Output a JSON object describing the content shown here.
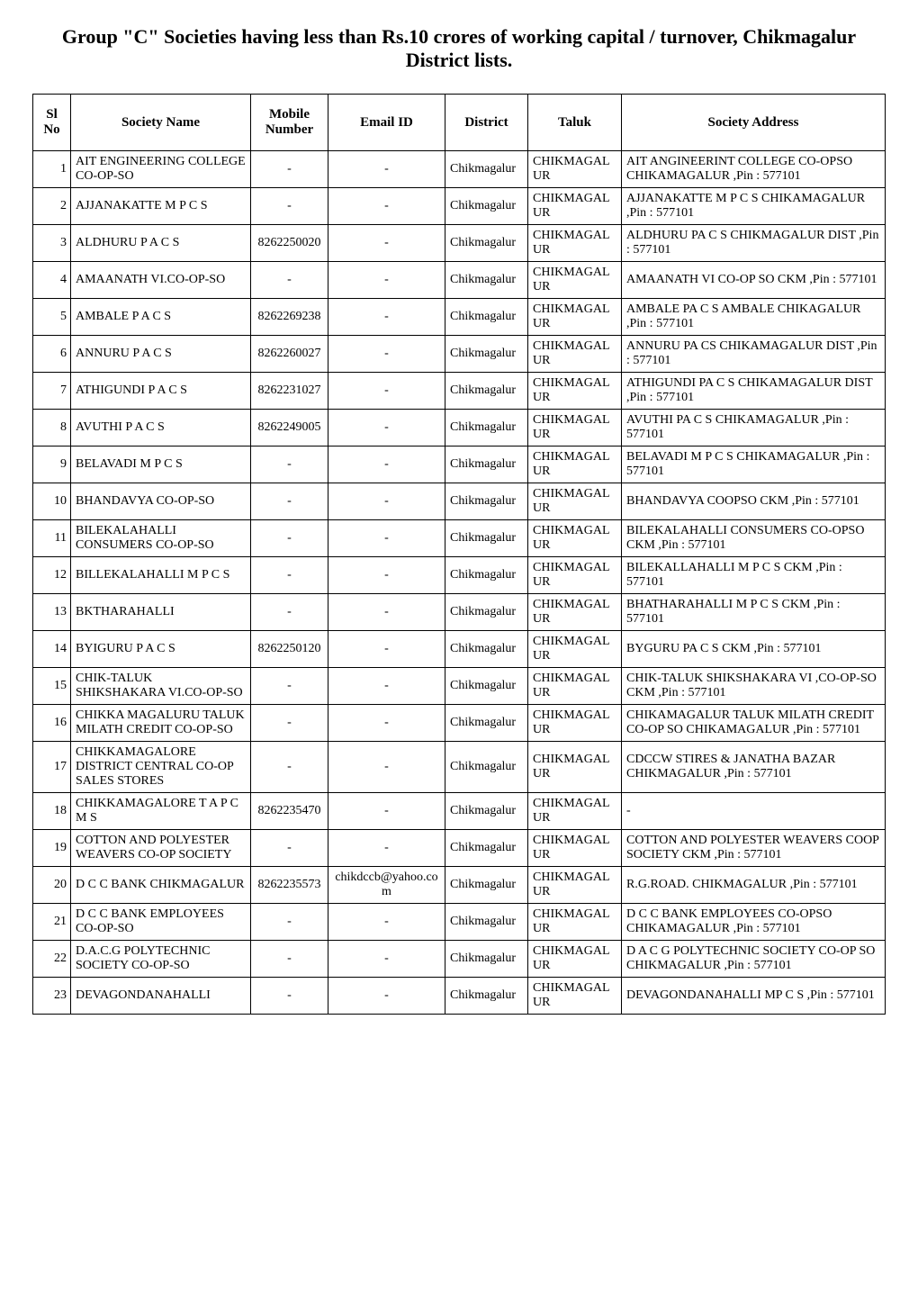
{
  "title": "Group \"C\" Societies having less than Rs.10 crores of working capital / turnover, Chikmagalur District lists.",
  "columns": {
    "slno": "Sl No",
    "society_name": "Society Name",
    "mobile": "Mobile Number",
    "email": "Email ID",
    "district": "District",
    "taluk": "Taluk",
    "address": "Society Address"
  },
  "rows": [
    {
      "slno": "1",
      "name": "AIT ENGINEERING COLLEGE  CO-OP-SO",
      "mobile": "-",
      "email": "-",
      "district": "Chikmagalur",
      "taluk": "CHIKMAGALUR",
      "address": "AIT ANGINEERINT COLLEGE CO-OPSO  CHIKAMAGALUR ,Pin : 577101"
    },
    {
      "slno": "2",
      "name": "AJJANAKATTE  M P C S",
      "mobile": "-",
      "email": "-",
      "district": "Chikmagalur",
      "taluk": "CHIKMAGALUR",
      "address": "AJJANAKATTE M P C S  CHIKAMAGALUR ,Pin : 577101"
    },
    {
      "slno": "3",
      "name": "ALDHURU  P A C S",
      "mobile": "8262250020",
      "email": "-",
      "district": "Chikmagalur",
      "taluk": "CHIKMAGALUR",
      "address": "ALDHURU PA C S  CHIKMAGALUR DIST ,Pin : 577101"
    },
    {
      "slno": "4",
      "name": "AMAANATH VI.CO-OP-SO",
      "mobile": "-",
      "email": "-",
      "district": "Chikmagalur",
      "taluk": "CHIKMAGALUR",
      "address": "AMAANATH VI CO-OP SO  CKM ,Pin : 577101"
    },
    {
      "slno": "5",
      "name": "AMBALE  P A C S",
      "mobile": "8262269238",
      "email": "-",
      "district": "Chikmagalur",
      "taluk": "CHIKMAGALUR",
      "address": "AMBALE PA C S  AMBALE  CHIKAGALUR ,Pin : 577101"
    },
    {
      "slno": "6",
      "name": "ANNURU  P A C S",
      "mobile": "8262260027",
      "email": "-",
      "district": "Chikmagalur",
      "taluk": "CHIKMAGALUR",
      "address": "ANNURU PA CS  CHIKAMAGALUR DIST ,Pin : 577101"
    },
    {
      "slno": "7",
      "name": "ATHIGUNDI  P A C S",
      "mobile": "8262231027",
      "email": "-",
      "district": "Chikmagalur",
      "taluk": "CHIKMAGALUR",
      "address": "ATHIGUNDI PA C S  CHIKAMAGALUR DIST ,Pin : 577101"
    },
    {
      "slno": "8",
      "name": "AVUTHI  P A C S",
      "mobile": "8262249005",
      "email": "-",
      "district": "Chikmagalur",
      "taluk": "CHIKMAGALUR",
      "address": "AVUTHI PA C S  CHIKAMAGALUR ,Pin : 577101"
    },
    {
      "slno": "9",
      "name": "BELAVADI  M P C S",
      "mobile": "-",
      "email": "-",
      "district": "Chikmagalur",
      "taluk": "CHIKMAGALUR",
      "address": "BELAVADI M P C S  CHIKAMAGALUR ,Pin : 577101"
    },
    {
      "slno": "10",
      "name": "BHANDAVYA CO-OP-SO",
      "mobile": "-",
      "email": "-",
      "district": "Chikmagalur",
      "taluk": "CHIKMAGALUR",
      "address": "BHANDAVYA COOPSO  CKM ,Pin : 577101"
    },
    {
      "slno": "11",
      "name": "BILEKALAHALLI  CONSUMERS CO-OP-SO",
      "mobile": "-",
      "email": "-",
      "district": "Chikmagalur",
      "taluk": "CHIKMAGALUR",
      "address": "BILEKALAHALLI CONSUMERS CO-OPSO  CKM ,Pin : 577101"
    },
    {
      "slno": "12",
      "name": "BILLEKALAHALLI  M P C S",
      "mobile": "-",
      "email": "-",
      "district": "Chikmagalur",
      "taluk": "CHIKMAGALUR",
      "address": "BILEKALLAHALLI M P C S  CKM ,Pin : 577101"
    },
    {
      "slno": "13",
      "name": "BKTHARAHALLI",
      "mobile": "-",
      "email": "-",
      "district": "Chikmagalur",
      "taluk": "CHIKMAGALUR",
      "address": "BHATHARAHALLI M P C S  CKM ,Pin : 577101"
    },
    {
      "slno": "14",
      "name": "BYIGURU  P A C S",
      "mobile": "8262250120",
      "email": "-",
      "district": "Chikmagalur",
      "taluk": "CHIKMAGALUR",
      "address": "BYGURU PA C S  CKM ,Pin : 577101"
    },
    {
      "slno": "15",
      "name": "CHIK-TALUK SHIKSHAKARA VI.CO-OP-SO",
      "mobile": "-",
      "email": "-",
      "district": "Chikmagalur",
      "taluk": "CHIKMAGALUR",
      "address": "CHIK-TALUK SHIKSHAKARA VI ,CO-OP-SO  CKM ,Pin : 577101"
    },
    {
      "slno": "16",
      "name": "CHIKKA MAGALURU TALUK MILATH CREDIT CO-OP-SO",
      "mobile": "-",
      "email": "-",
      "district": "Chikmagalur",
      "taluk": "CHIKMAGALUR",
      "address": "CHIKAMAGALUR TALUK MILATH CREDIT CO-OP SO  CHIKAMAGALUR ,Pin : 577101"
    },
    {
      "slno": "17",
      "name": "CHIKKAMAGALORE  DISTRICT CENTRAL CO-OP  SALES STORES",
      "mobile": "-",
      "email": "-",
      "district": "Chikmagalur",
      "taluk": "CHIKMAGALUR",
      "address": "CDCCW STIRES & JANATHA BAZAR CHIKMAGALUR ,Pin : 577101"
    },
    {
      "slno": "18",
      "name": "CHIKKAMAGALORE  T A P C M S",
      "mobile": "8262235470",
      "email": "-",
      "district": "Chikmagalur",
      "taluk": "CHIKMAGALUR",
      "address": "-"
    },
    {
      "slno": "19",
      "name": "COTTON AND POLYESTER WEAVERS CO-OP SOCIETY",
      "mobile": "-",
      "email": "-",
      "district": "Chikmagalur",
      "taluk": "CHIKMAGALUR",
      "address": "COTTON AND POLYESTER WEAVERS COOP SOCIETY  CKM ,Pin : 577101"
    },
    {
      "slno": "20",
      "name": "D C C BANK CHIKMAGALUR",
      "mobile": "8262235573",
      "email": "chikdccb@yahoo.com",
      "district": "Chikmagalur",
      "taluk": "CHIKMAGALUR",
      "address": "R.G.ROAD.   CHIKMAGALUR ,Pin : 577101"
    },
    {
      "slno": "21",
      "name": "D C C BANK EMPLOYEES   CO-OP-SO",
      "mobile": "-",
      "email": "-",
      "district": "Chikmagalur",
      "taluk": "CHIKMAGALUR",
      "address": "D C C BANK EMPLOYEES CO-OPSO  CHIKAMAGALUR ,Pin : 577101"
    },
    {
      "slno": "22",
      "name": "D.A.C.G POLYTECHNIC SOCIETY  CO-OP-SO",
      "mobile": "-",
      "email": "-",
      "district": "Chikmagalur",
      "taluk": "CHIKMAGALUR",
      "address": "D A C G POLYTECHNIC SOCIETY CO-OP SO  CHIKMAGALUR ,Pin : 577101"
    },
    {
      "slno": "23",
      "name": "DEVAGONDANAHALLI",
      "mobile": "-",
      "email": "-",
      "district": "Chikmagalur",
      "taluk": "CHIKMAGALUR",
      "address": "DEVAGONDANAHALLI MP C S ,Pin : 577101"
    }
  ]
}
